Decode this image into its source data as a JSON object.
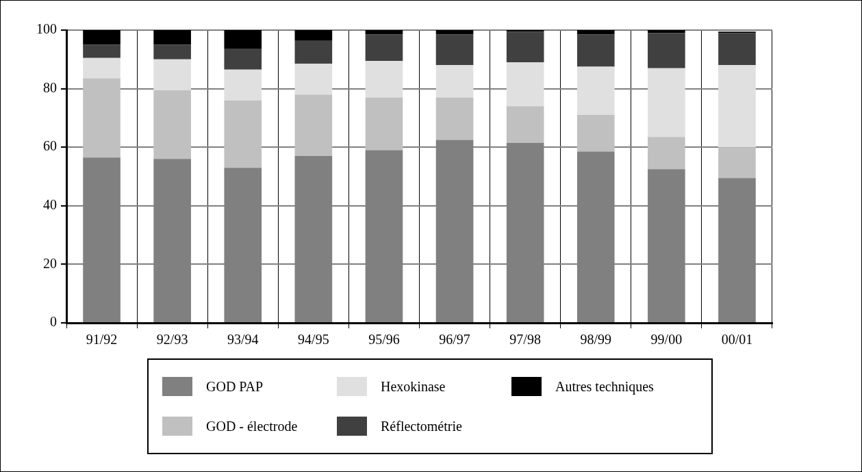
{
  "chart_data": {
    "type": "bar",
    "stacked": true,
    "categories": [
      "91/92",
      "92/93",
      "93/94",
      "94/95",
      "95/96",
      "96/97",
      "97/98",
      "98/99",
      "99/00",
      "00/01"
    ],
    "series": [
      {
        "name": "GOD PAP",
        "color": "#808080",
        "values": [
          56.5,
          56,
          53,
          57,
          59,
          62.5,
          61.5,
          58.5,
          52.5,
          49.5
        ]
      },
      {
        "name": "GOD - électrode",
        "color": "#c0c0c0",
        "values": [
          27,
          23.5,
          23,
          21,
          18,
          14.5,
          12.5,
          12.5,
          11,
          10.5
        ]
      },
      {
        "name": "Hexokinase",
        "color": "#e0e0e0",
        "values": [
          7,
          10.5,
          10.5,
          10.5,
          12.5,
          11,
          15,
          16.5,
          23.5,
          28
        ]
      },
      {
        "name": "Réflectométrie",
        "color": "#404040",
        "values": [
          4.5,
          5,
          7,
          8,
          9,
          10.5,
          10.5,
          11,
          12,
          11
        ]
      },
      {
        "name": "Autres techniques",
        "color": "#000000",
        "values": [
          5,
          5,
          6.5,
          3.5,
          1.5,
          1.5,
          0.5,
          1.5,
          1,
          0.5
        ]
      }
    ],
    "ylim": [
      0,
      100
    ],
    "yticks": [
      0,
      20,
      40,
      60,
      80,
      100
    ],
    "grid": true,
    "legend": "bottom"
  }
}
